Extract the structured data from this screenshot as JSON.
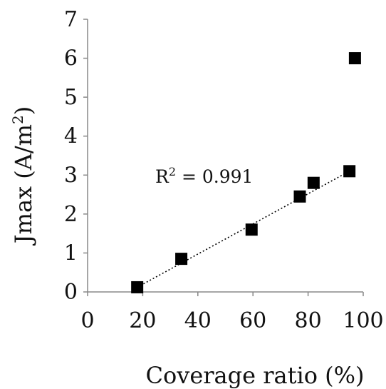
{
  "chart_data": {
    "type": "scatter",
    "xlabel": "Coverage ratio (%)",
    "ylabel": {
      "base": "Jmax (A/m",
      "sup": "2",
      "close": ")"
    },
    "xlim": [
      0,
      100
    ],
    "ylim": [
      0,
      7
    ],
    "xticks": [
      "0",
      "20",
      "40",
      "60",
      "80",
      "100"
    ],
    "yticks": [
      "0",
      "1",
      "2",
      "3",
      "4",
      "5",
      "6",
      "7"
    ],
    "grid": false,
    "series": [
      {
        "marker": "square",
        "color": "#000000",
        "points": [
          {
            "x": 18,
            "y": 0.12
          },
          {
            "x": 34,
            "y": 0.85
          },
          {
            "x": 59.5,
            "y": 1.6
          },
          {
            "x": 77,
            "y": 2.45
          },
          {
            "x": 82,
            "y": 2.8
          },
          {
            "x": 95,
            "y": 3.1
          },
          {
            "x": 97,
            "y": 6.0
          }
        ]
      }
    ],
    "trendline": {
      "style": "dotted",
      "color": "#000000",
      "from": {
        "x": 18,
        "y": 0.12
      },
      "to": {
        "x": 95,
        "y": 3.1
      }
    },
    "annotation": {
      "prefix": "R",
      "sup": "2",
      "suffix": " = 0.991"
    }
  }
}
